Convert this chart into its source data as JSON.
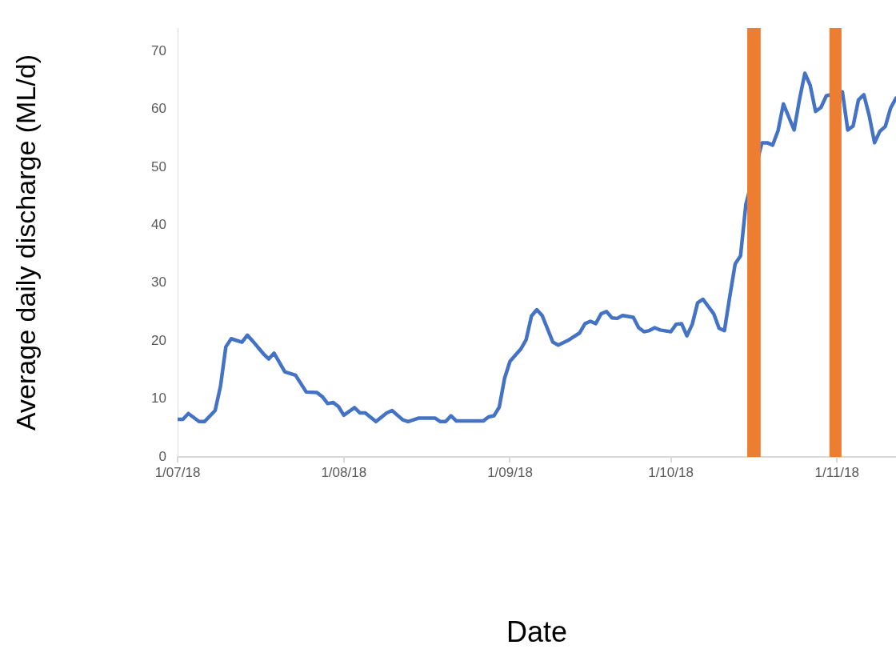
{
  "chart_data": {
    "type": "line",
    "xlabel": "Date",
    "ylabel": "Average daily discharge (ML/d)",
    "x": [
      "2018-07-01",
      "2018-07-02",
      "2018-07-03",
      "2018-07-05",
      "2018-07-06",
      "2018-07-08",
      "2018-07-09",
      "2018-07-10",
      "2018-07-11",
      "2018-07-13",
      "2018-07-14",
      "2018-07-15",
      "2018-07-17",
      "2018-07-18",
      "2018-07-19",
      "2018-07-21",
      "2018-07-23",
      "2018-07-25",
      "2018-07-27",
      "2018-07-28",
      "2018-07-29",
      "2018-07-30",
      "2018-07-31",
      "2018-08-01",
      "2018-08-03",
      "2018-08-04",
      "2018-08-05",
      "2018-08-07",
      "2018-08-09",
      "2018-08-10",
      "2018-08-12",
      "2018-08-13",
      "2018-08-15",
      "2018-08-18",
      "2018-08-19",
      "2018-08-20",
      "2018-08-21",
      "2018-08-22",
      "2018-08-27",
      "2018-08-28",
      "2018-08-29",
      "2018-08-30",
      "2018-08-31",
      "2018-09-01",
      "2018-09-03",
      "2018-09-04",
      "2018-09-05",
      "2018-09-06",
      "2018-09-07",
      "2018-09-09",
      "2018-09-10",
      "2018-09-12",
      "2018-09-14",
      "2018-09-15",
      "2018-09-16",
      "2018-09-17",
      "2018-09-18",
      "2018-09-19",
      "2018-09-20",
      "2018-09-21",
      "2018-09-22",
      "2018-09-24",
      "2018-09-25",
      "2018-09-26",
      "2018-09-27",
      "2018-09-28",
      "2018-09-29",
      "2018-10-01",
      "2018-10-02",
      "2018-10-03",
      "2018-10-04",
      "2018-10-05",
      "2018-10-06",
      "2018-10-07",
      "2018-10-09",
      "2018-10-10",
      "2018-10-11",
      "2018-10-12",
      "2018-10-13",
      "2018-10-14",
      "2018-10-15",
      "2018-10-18",
      "2018-10-19",
      "2018-10-20",
      "2018-10-21",
      "2018-10-22",
      "2018-10-24",
      "2018-10-25",
      "2018-10-26",
      "2018-10-27",
      "2018-10-28",
      "2018-10-29",
      "2018-10-30",
      "2018-11-02",
      "2018-11-03",
      "2018-11-04",
      "2018-11-05",
      "2018-11-06",
      "2018-11-07",
      "2018-11-08",
      "2018-11-09",
      "2018-11-10",
      "2018-11-11",
      "2018-11-12"
    ],
    "series": [
      {
        "color": "#4472c4",
        "values": [
          6.5,
          6.5,
          7.5,
          6.1,
          6.1,
          8,
          12.2,
          19,
          20.4,
          19.8,
          21,
          20,
          17.8,
          16.9,
          17.9,
          14.7,
          14.1,
          11.2,
          11.1,
          10.4,
          9.2,
          9.4,
          8.7,
          7.2,
          8.5,
          7.6,
          7.6,
          6.1,
          7.6,
          8,
          6.4,
          6.1,
          6.7,
          6.7,
          6.1,
          6.1,
          7.1,
          6.2,
          6.2,
          6.9,
          7.1,
          8.6,
          13.6,
          16.5,
          18.6,
          20.2,
          24.3,
          25.4,
          24.4,
          19.8,
          19.3,
          20.2,
          21.4,
          23,
          23.4,
          23,
          24.7,
          25.1,
          24,
          23.9,
          24.4,
          24.1,
          22.3,
          21.6,
          21.8,
          22.3,
          21.9,
          21.6,
          22.9,
          23,
          20.9,
          22.9,
          26.6,
          27.2,
          24.7,
          22.2,
          21.8,
          27.7,
          33.3,
          34.7,
          43.6,
          54.2,
          54.2,
          53.8,
          56.3,
          60.9,
          56.4,
          61.7,
          66.2,
          64.1,
          59.6,
          60.3,
          62.3,
          63,
          56.4,
          57.1,
          61.6,
          62.5,
          58.9,
          54.2,
          56.2,
          57,
          60.2,
          61.9
        ]
      }
    ],
    "xlim": [
      "2018-07-01",
      "2018-11-12"
    ],
    "xticks": [
      {
        "value": "2018-07-01",
        "label": "1/07/18"
      },
      {
        "value": "2018-08-01",
        "label": "1/08/18"
      },
      {
        "value": "2018-09-01",
        "label": "1/09/18"
      },
      {
        "value": "2018-10-01",
        "label": "1/10/18"
      },
      {
        "value": "2018-11-01",
        "label": "1/11/18"
      }
    ],
    "ylim": [
      0,
      74
    ],
    "yticks": [
      0,
      10,
      20,
      30,
      40,
      50,
      60,
      70
    ],
    "bands": [
      {
        "axis": "x",
        "from": "2018-10-15T06:00",
        "to": "2018-10-17T18:00",
        "color": "#ed7d31"
      },
      {
        "axis": "x",
        "from": "2018-10-30T14:00",
        "to": "2018-11-01T20:00",
        "color": "#ed7d31"
      }
    ],
    "grid": false,
    "legend": false,
    "marker": "none",
    "line_style": "solid"
  }
}
